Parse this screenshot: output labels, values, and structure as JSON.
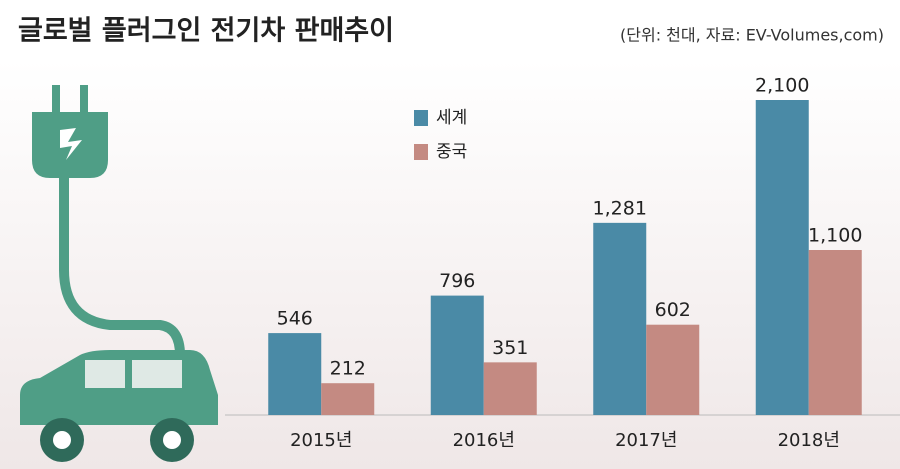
{
  "chart_data": {
    "type": "bar",
    "title": "글로벌 플러그인 전기차 판매추이",
    "subtitle": "(단위: 천대, 자료: EV-Volumes,com)",
    "categories": [
      "2015년",
      "2016년",
      "2017년",
      "2018년"
    ],
    "series": [
      {
        "name": "세계",
        "color": "#4a8aa6",
        "values": [
          546,
          796,
          1281,
          2100
        ],
        "value_labels": [
          "546",
          "796",
          "1,281",
          "2,100"
        ]
      },
      {
        "name": "중국",
        "color": "#c48a82",
        "values": [
          212,
          351,
          602,
          1100
        ],
        "value_labels": [
          "212",
          "351",
          "602",
          "1,100"
        ]
      }
    ],
    "grid": false
  }
}
